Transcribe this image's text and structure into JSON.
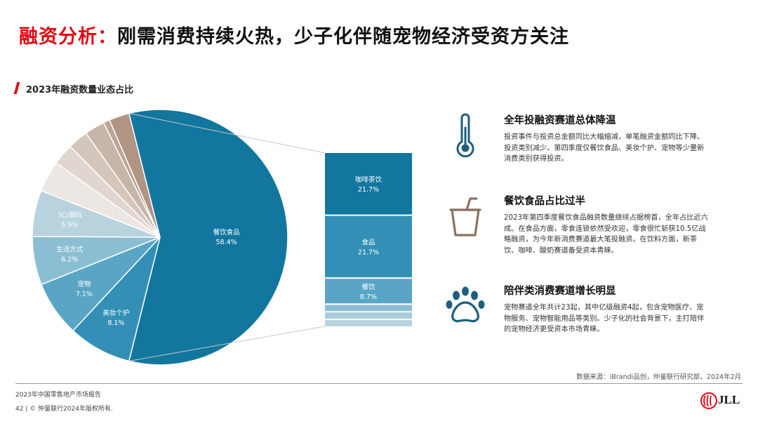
{
  "header": {
    "title_accent": "融资分析：",
    "title_rest": "刚需消费持续火热，少子化伴随宠物经济受资方关注",
    "subtitle": "2023年融资数量业态占比"
  },
  "chart_data": {
    "type": "pie",
    "title": "2023年融资数量业态占比",
    "slices": [
      {
        "label": "餐饮食品",
        "value": 58.4,
        "color": "#12769f",
        "label_color": "#ffffff"
      },
      {
        "label": "美妆个护",
        "value": 8.1,
        "color": "#338fb5",
        "label_color": "#ffffff"
      },
      {
        "label": "宠物",
        "value": 7.1,
        "color": "#5aa5c5",
        "label_color": "#ffffff"
      },
      {
        "label": "生活方式",
        "value": 6.2,
        "color": "#8cbed3",
        "label_color": "#ffffff"
      },
      {
        "label": "3C/潮玩",
        "value": 5.9,
        "color": "#b8d3de",
        "label_color": "#ffffff"
      },
      {
        "label": "",
        "value": 4.0,
        "color": "#ede7e3",
        "label_color": ""
      },
      {
        "label": "",
        "value": 2.7,
        "color": "#e0d6cf",
        "label_color": ""
      },
      {
        "label": "",
        "value": 2.6,
        "color": "#d4c6bb",
        "label_color": ""
      },
      {
        "label": "",
        "value": 2.6,
        "color": "#c7b5a8",
        "label_color": ""
      },
      {
        "label": "",
        "value": 0.8,
        "color": "#bba495",
        "label_color": ""
      },
      {
        "label": "",
        "value": 2.6,
        "color": "#b09584",
        "label_color": ""
      }
    ],
    "breakdown": {
      "parent": "餐饮食品",
      "segments": [
        {
          "label": "咖啡茶饮",
          "value": 21.7,
          "color": "#12769f"
        },
        {
          "label": "食品",
          "value": 21.7,
          "color": "#338fb5"
        },
        {
          "label": "餐饮",
          "value": 8.7,
          "color": "#5aa5c5"
        },
        {
          "label": "",
          "value": 2.2,
          "color": "#8cbed3"
        },
        {
          "label": "",
          "value": 2.2,
          "color": "#a9ccd9"
        },
        {
          "label": "",
          "value": 2.2,
          "color": "#b8d3de"
        }
      ]
    }
  },
  "sections": [
    {
      "icon": "thermometer-icon",
      "title": "全年投融资赛道总体降温",
      "body": "投资事件与投资总金额同比大幅缩减，单笔融资金额同比下降、投资类别减少。第四季度仅餐饮食品、美妆个护、宠物等少量新消费类别获得投资。"
    },
    {
      "icon": "drink-cup-icon",
      "title": "餐饮食品占比过半",
      "body": "2023年第四季度餐饮食品融资数量继续占据榜首，全年占比近六成。在食品方面，零食连锁依然受欢迎，零食很忙斩获10.5亿战略融资，为今年新消费赛道最大笔投融资。在饮料方面，新茶饮、咖啡、酸奶赛道备受资本青睐。"
    },
    {
      "icon": "paw-icon",
      "title": "陪伴类消费赛道增长明显",
      "body": "宠物赛道全年共计23起，其中亿级融资4起，包含宠物医疗、宠物服务、宠物智能用品等类别。少子化的社会背景下，主打陪伴的宠物经济更受资本市场青睐。"
    }
  ],
  "colors": {
    "accent": "#e30613",
    "icon": "#1d5f7e",
    "cup_icon": "#8b7262"
  },
  "footer": {
    "source": "数据来源：iBrandi品创，仲量联行研究部，2024年2月",
    "report": "2023年中国零售地产市场报告",
    "page": "42 | © 仲量联行2024年版权所有.",
    "logo": "JLL"
  }
}
